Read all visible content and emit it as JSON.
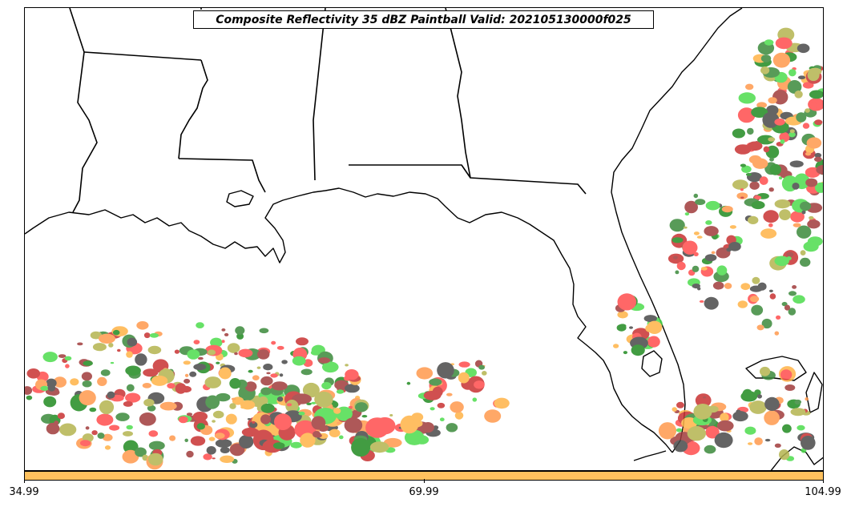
{
  "title": "Composite Reflectivity 35 dBZ Paintball Valid: 202105130000f025",
  "colorbar": {
    "color": "#ffc15e",
    "ticks": [
      "34.99",
      "69.99",
      "104.99"
    ]
  },
  "member_colors": [
    "#ff4d4d",
    "#4ddc4d",
    "#a03c3c",
    "#b4b450",
    "#ff9a4d",
    "#3c8a3c",
    "#4a4a4a",
    "#ffb347",
    "#c83232",
    "#228b22"
  ]
}
